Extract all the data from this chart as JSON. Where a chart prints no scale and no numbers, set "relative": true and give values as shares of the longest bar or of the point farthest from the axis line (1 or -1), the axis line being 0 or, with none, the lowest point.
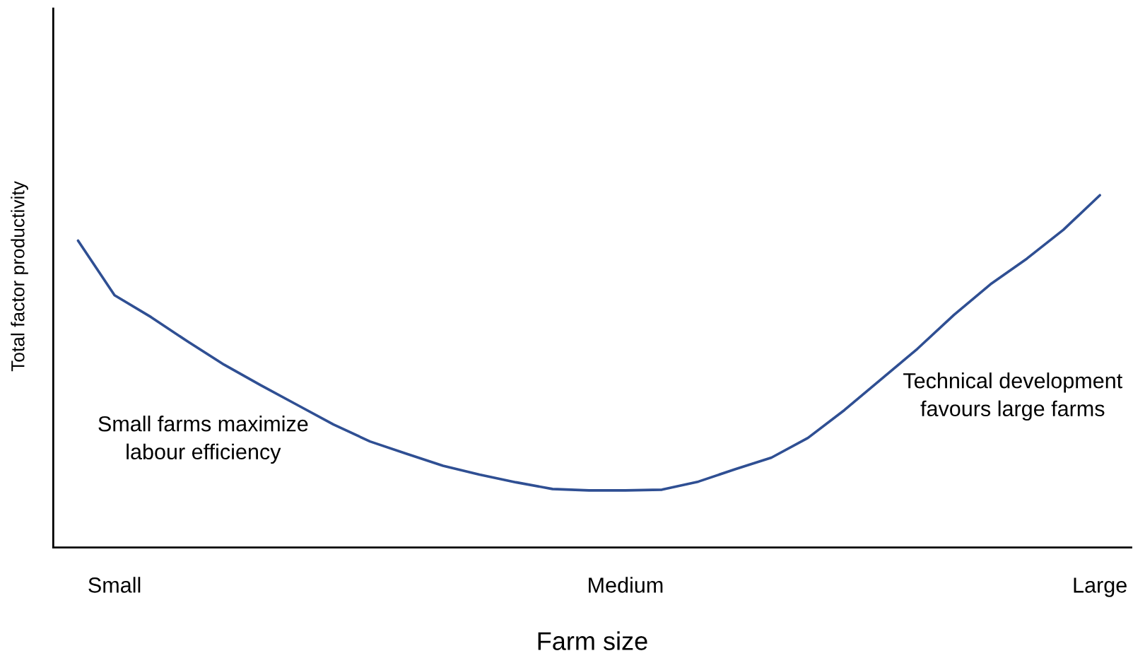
{
  "chart_data": {
    "type": "line",
    "relative": true,
    "xlabel": "Farm size",
    "ylabel": "Total factor productivity",
    "categories": [
      null,
      "Small",
      null,
      null,
      null,
      null,
      null,
      null,
      null,
      null,
      null,
      null,
      null,
      null,
      null,
      "Medium",
      null,
      null,
      null,
      null,
      null,
      null,
      null,
      null,
      null,
      null,
      null,
      null,
      "Large"
    ],
    "series": [
      {
        "color": "#2f4f93",
        "values": [
          0.871,
          0.716,
          0.654,
          0.585,
          0.519,
          0.461,
          0.405,
          0.349,
          0.301,
          0.266,
          0.232,
          0.207,
          0.185,
          0.166,
          0.162,
          0.162,
          0.164,
          0.187,
          0.222,
          0.255,
          0.311,
          0.39,
          0.477,
          0.564,
          0.66,
          0.747,
          0.82,
          0.902,
          1
        ]
      }
    ],
    "annotations": [
      "Small farms maximize\nlabour efficiency",
      "Technical development\nfavours large farms"
    ],
    "grid": false,
    "legend": false,
    "marker": "none",
    "line_style": "solid"
  }
}
